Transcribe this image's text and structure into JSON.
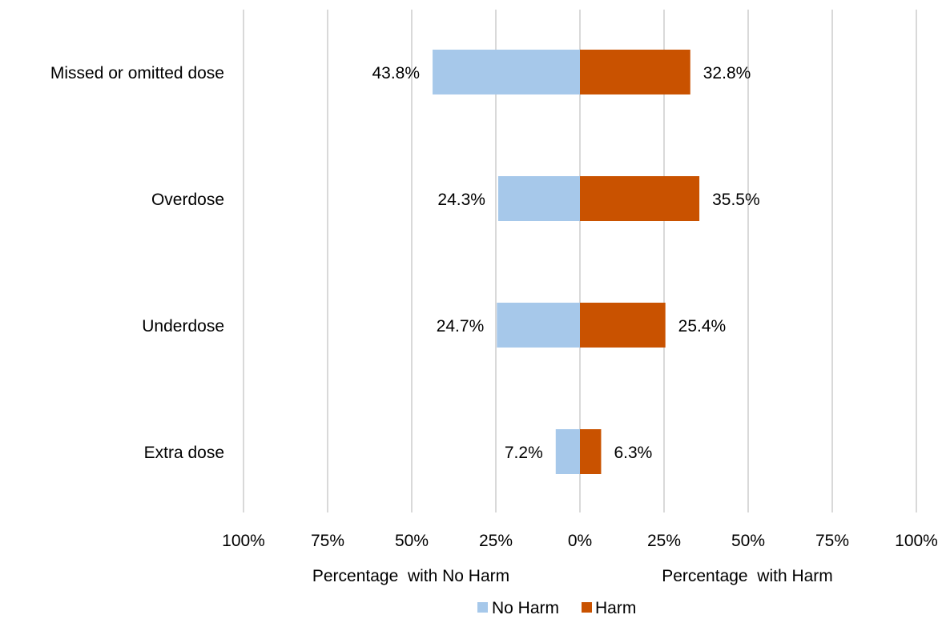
{
  "chart_data": {
    "type": "bar",
    "orientation": "horizontal",
    "layout": "diverging",
    "categories": [
      "Missed or omitted dose",
      "Overdose",
      "Underdose",
      "Extra dose"
    ],
    "series": [
      {
        "name": "No Harm",
        "values": [
          43.8,
          24.3,
          24.7,
          7.2
        ],
        "labels": [
          "43.8%",
          "24.3%",
          "24.7%",
          "7.2%"
        ],
        "color": "#a6c8ea",
        "side": "left"
      },
      {
        "name": "Harm",
        "values": [
          32.8,
          35.5,
          25.4,
          6.3
        ],
        "labels": [
          "32.8%",
          "35.5%",
          "25.4%",
          "6.3%"
        ],
        "color": "#c95200",
        "side": "right"
      }
    ],
    "xlim": [
      -100,
      100
    ],
    "ticks": [
      -100,
      -75,
      -50,
      -25,
      0,
      25,
      50,
      75,
      100
    ],
    "tick_labels": [
      "100%",
      "75%",
      "50%",
      "25%",
      "0%",
      "25%",
      "50%",
      "75%",
      "100%"
    ],
    "xlabel_left": "Percentage  with No Harm",
    "xlabel_right": "Percentage  with Harm",
    "grid": true,
    "gridline_color": "#d9d9d9",
    "legend_position": "bottom"
  }
}
